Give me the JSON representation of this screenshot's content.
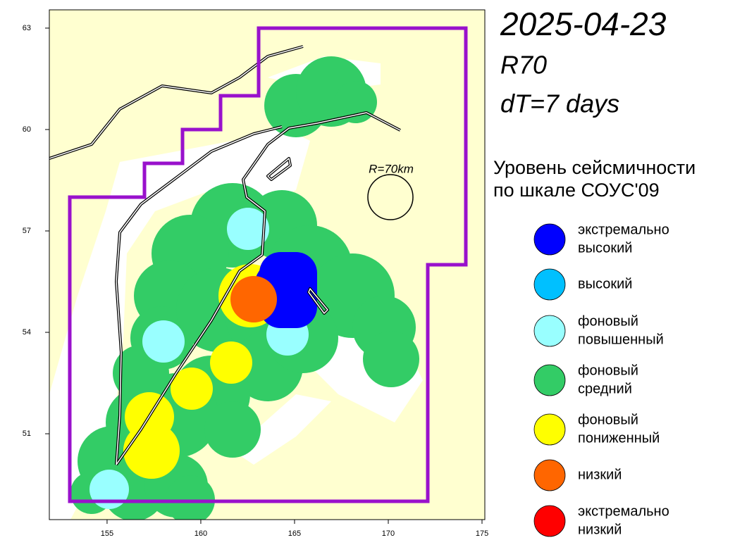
{
  "map": {
    "title": "2025-04-23",
    "subtitle": "R70",
    "window": "dT=7 days",
    "radius_label": "R=70km",
    "xlim": [
      151.92,
      175.15
    ],
    "ylim": [
      48.46,
      63.54
    ],
    "xticks": [
      155,
      160,
      165,
      170,
      175
    ],
    "yticks": [
      51,
      54,
      57,
      60,
      63
    ],
    "legend": {
      "title": [
        "Уровень сейсмичности",
        "по шкале СОУС'09"
      ],
      "items": [
        {
          "label": [
            "экстремально",
            "высокий"
          ],
          "color": "#0000ff"
        },
        {
          "label": [
            "высокий"
          ],
          "color": "#00c0ff"
        },
        {
          "label": [
            "фоновый",
            "повышенный"
          ],
          "color": "#99ffff"
        },
        {
          "label": [
            "фоновый",
            "средний"
          ],
          "color": "#33cc66"
        },
        {
          "label": [
            "фоновый",
            "пониженный"
          ],
          "color": "#ffff00"
        },
        {
          "label": [
            "низкий"
          ],
          "color": "#ff6600"
        },
        {
          "label": [
            "экстремально",
            "низкий"
          ],
          "color": "#ff0000"
        }
      ]
    }
  }
}
